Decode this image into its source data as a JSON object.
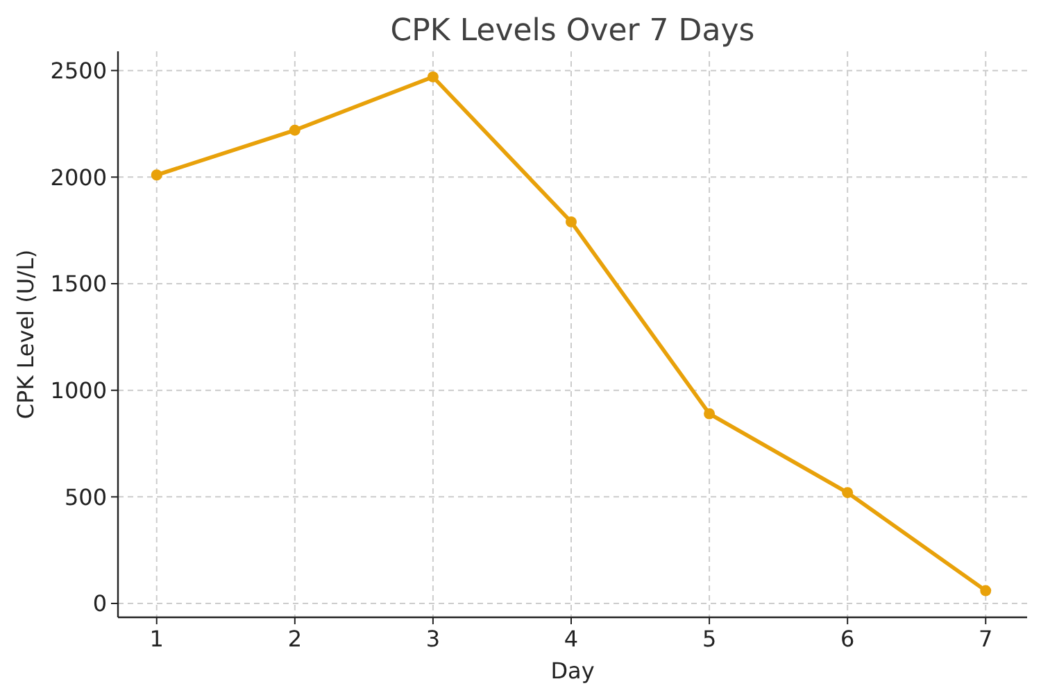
{
  "chart_data": {
    "type": "line",
    "title": "CPK Levels Over 7 Days",
    "xlabel": "Day",
    "ylabel": "CPK Level (U/L)",
    "x": [
      1,
      2,
      3,
      4,
      5,
      6,
      7
    ],
    "series": [
      {
        "color": "#e8a10a",
        "values": [
          2010,
          2220,
          2470,
          1790,
          890,
          520,
          60
        ]
      }
    ],
    "xlim": [
      0.72,
      7.3
    ],
    "xticks": [
      1,
      2,
      3,
      4,
      5,
      6,
      7
    ],
    "ylim": [
      -65,
      2590
    ],
    "yticks": [
      0,
      500,
      1000,
      1500,
      2000,
      2500
    ],
    "grid": true,
    "marker": "circle",
    "line_style": "solid"
  }
}
